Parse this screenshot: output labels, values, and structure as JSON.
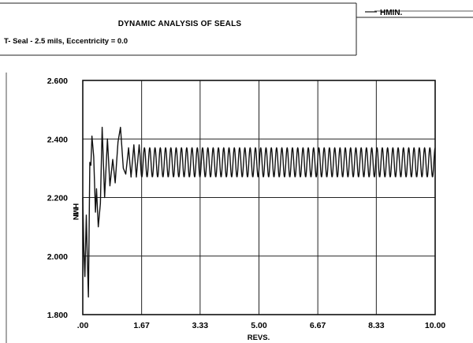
{
  "header": {
    "title": "DYNAMIC ANALYSIS OF SEALS",
    "subtitle": "T- Seal - 2.5 mils, Eccentricity = 0.0"
  },
  "legend": {
    "entries": [
      "HMIN."
    ]
  },
  "chart_data": {
    "type": "line",
    "title": "DYNAMIC ANALYSIS OF SEALS",
    "subtitle": "T- Seal - 2.5 mils, Eccentricity = 0.0",
    "xlabel": "REVS.",
    "ylabel": "HMIN",
    "xlim": [
      0.0,
      10.0
    ],
    "ylim": [
      1.8,
      2.6
    ],
    "x_ticks": [
      0.0,
      1.67,
      3.33,
      5.0,
      6.67,
      8.33,
      10.0
    ],
    "x_tick_labels": [
      ".00",
      "1.67",
      "3.33",
      "5.00",
      "6.67",
      "8.33",
      "10.00"
    ],
    "y_ticks": [
      1.8,
      2.0,
      2.2,
      2.4,
      2.6
    ],
    "y_tick_labels": [
      "1.800",
      "2.000",
      "2.200",
      "2.400",
      "2.600"
    ],
    "grid": true,
    "legend_position": "top-right",
    "series": [
      {
        "name": "HMIN.",
        "color": "#111111",
        "transient_points": [
          [
            0.0,
            2.2
          ],
          [
            0.03,
            2.02
          ],
          [
            0.06,
            1.93
          ],
          [
            0.1,
            2.14
          ],
          [
            0.13,
            1.99
          ],
          [
            0.16,
            1.86
          ],
          [
            0.2,
            2.32
          ],
          [
            0.23,
            2.31
          ],
          [
            0.26,
            2.41
          ],
          [
            0.31,
            2.34
          ],
          [
            0.36,
            2.15
          ],
          [
            0.39,
            2.23
          ],
          [
            0.44,
            2.1
          ],
          [
            0.5,
            2.18
          ],
          [
            0.55,
            2.44
          ],
          [
            0.62,
            2.2
          ],
          [
            0.7,
            2.4
          ],
          [
            0.77,
            2.24
          ],
          [
            0.85,
            2.33
          ],
          [
            0.92,
            2.25
          ],
          [
            1.0,
            2.39
          ],
          [
            1.07,
            2.44
          ],
          [
            1.15,
            2.3
          ],
          [
            1.22,
            2.28
          ],
          [
            1.3,
            2.37
          ],
          [
            1.37,
            2.27
          ],
          [
            1.45,
            2.38
          ],
          [
            1.52,
            2.27
          ],
          [
            1.6,
            2.38
          ]
        ],
        "steady_state": {
          "x_start": 1.6,
          "x_end": 10.0,
          "center": 2.32,
          "amplitude": 0.05,
          "period": 0.15
        }
      }
    ]
  }
}
